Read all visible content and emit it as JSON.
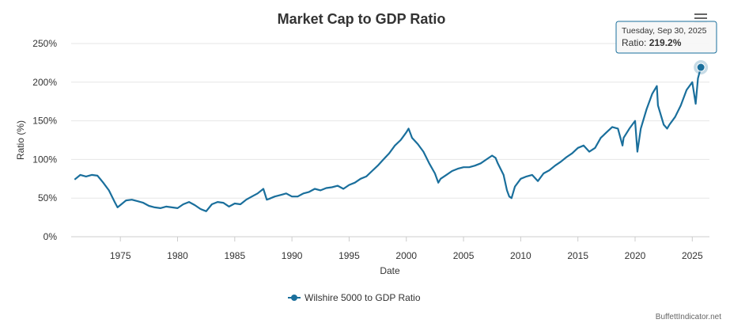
{
  "chart_data": {
    "type": "line",
    "title": "Market Cap to GDP Ratio",
    "xlabel": "Date",
    "ylabel": "Ratio (%)",
    "xlim": [
      1970.7,
      2026.5
    ],
    "ylim": [
      0,
      250
    ],
    "y_ticks": [
      0,
      50,
      100,
      150,
      200,
      250
    ],
    "y_tick_labels": [
      "0%",
      "50%",
      "100%",
      "150%",
      "200%",
      "250%"
    ],
    "x_ticks": [
      1975,
      1980,
      1985,
      1990,
      1995,
      2000,
      2005,
      2010,
      2015,
      2020,
      2025
    ],
    "x_tick_labels": [
      "1975",
      "1980",
      "1985",
      "1990",
      "1995",
      "2000",
      "2005",
      "2010",
      "2015",
      "2020",
      "2025"
    ],
    "grid": "horizontal",
    "legend_position": "bottom-center",
    "series": [
      {
        "name": "Wilshire 5000 to GDP Ratio",
        "color": "#1a6f9c",
        "x": [
          1971.0,
          1971.5,
          1972.0,
          1972.5,
          1973.0,
          1973.5,
          1974.0,
          1974.5,
          1974.75,
          1975.0,
          1975.5,
          1976.0,
          1976.5,
          1977.0,
          1977.5,
          1978.0,
          1978.5,
          1979.0,
          1979.5,
          1980.0,
          1980.5,
          1981.0,
          1981.5,
          1982.0,
          1982.5,
          1983.0,
          1983.5,
          1984.0,
          1984.5,
          1985.0,
          1985.5,
          1986.0,
          1986.5,
          1987.0,
          1987.5,
          1987.8,
          1988.0,
          1988.5,
          1989.0,
          1989.5,
          1990.0,
          1990.5,
          1991.0,
          1991.5,
          1992.0,
          1992.5,
          1993.0,
          1993.5,
          1994.0,
          1994.5,
          1995.0,
          1995.5,
          1996.0,
          1996.5,
          1997.0,
          1997.5,
          1998.0,
          1998.5,
          1999.0,
          1999.5,
          2000.0,
          2000.2,
          2000.5,
          2001.0,
          2001.5,
          2002.0,
          2002.5,
          2002.8,
          2003.0,
          2003.5,
          2004.0,
          2004.5,
          2005.0,
          2005.5,
          2006.0,
          2006.5,
          2007.0,
          2007.5,
          2007.8,
          2008.0,
          2008.5,
          2008.8,
          2009.0,
          2009.2,
          2009.5,
          2010.0,
          2010.5,
          2011.0,
          2011.5,
          2012.0,
          2012.5,
          2013.0,
          2013.5,
          2014.0,
          2014.5,
          2015.0,
          2015.5,
          2016.0,
          2016.5,
          2017.0,
          2017.5,
          2018.0,
          2018.5,
          2018.9,
          2019.0,
          2019.5,
          2020.0,
          2020.2,
          2020.5,
          2021.0,
          2021.5,
          2021.9,
          2022.0,
          2022.5,
          2022.8,
          2023.0,
          2023.5,
          2024.0,
          2024.5,
          2025.0,
          2025.3,
          2025.5,
          2025.75
        ],
        "values": [
          74,
          80,
          78,
          80,
          79,
          70,
          60,
          45,
          38,
          41,
          47,
          48,
          46,
          44,
          40,
          38,
          37,
          39,
          38,
          37,
          42,
          45,
          41,
          36,
          33,
          42,
          45,
          44,
          39,
          43,
          42,
          48,
          52,
          56,
          62,
          48,
          49,
          52,
          54,
          56,
          52,
          52,
          56,
          58,
          62,
          60,
          63,
          64,
          66,
          62,
          67,
          70,
          75,
          78,
          85,
          92,
          100,
          108,
          118,
          125,
          135,
          140,
          128,
          120,
          110,
          95,
          82,
          70,
          75,
          80,
          85,
          88,
          90,
          90,
          92,
          95,
          100,
          105,
          102,
          95,
          80,
          60,
          52,
          50,
          65,
          75,
          78,
          80,
          72,
          82,
          86,
          92,
          97,
          103,
          108,
          115,
          118,
          110,
          115,
          128,
          135,
          142,
          140,
          118,
          128,
          140,
          150,
          110,
          140,
          165,
          185,
          195,
          170,
          145,
          140,
          145,
          155,
          170,
          190,
          200,
          172,
          205,
          219.2
        ]
      }
    ],
    "tooltip": {
      "date": "Tuesday, Sep 30, 2025",
      "label": "Ratio: ",
      "value": "219.2%"
    },
    "credit": "BuffettIndicator.net"
  }
}
